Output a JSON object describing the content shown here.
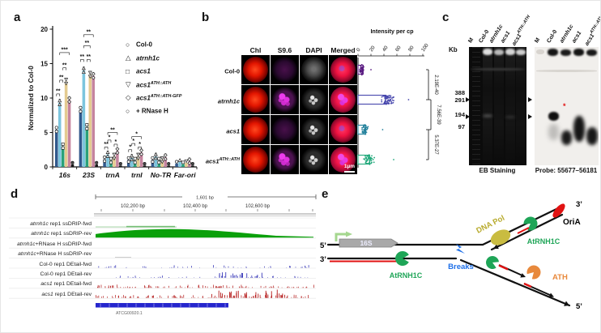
{
  "figure": {
    "panel_labels": {
      "a": "a",
      "b": "b",
      "c": "c",
      "d": "d",
      "e": "e"
    }
  },
  "chart_data": [
    {
      "id": "panel_a_qpcr",
      "type": "bar",
      "title": "",
      "xlabel": "",
      "ylabel": "Normalized to Col-0",
      "ylim": [
        0,
        20
      ],
      "yticks": [
        0,
        5,
        10,
        15,
        20
      ],
      "categories": [
        "16s",
        "23S",
        "trnA",
        "trnI",
        "No-TR",
        "Far-ori"
      ],
      "series": [
        {
          "name": "Col-0",
          "marker": "circle",
          "color": "#31598c",
          "values": [
            5.4,
            8.3,
            1.1,
            1.0,
            1.0,
            0.5
          ]
        },
        {
          "name": "atrnh1c",
          "marker": "triangle-up",
          "color": "#7cc5de",
          "values": [
            9.3,
            14.0,
            1.8,
            1.3,
            1.5,
            0.7
          ]
        },
        {
          "name": "acs1",
          "marker": "square",
          "color": "#2aa179",
          "values": [
            3.0,
            5.8,
            0.9,
            0.9,
            0.9,
            0.4
          ]
        },
        {
          "name": "acs1 ATH::ATH",
          "marker": "triangle-down",
          "color": "#e4cb90",
          "values": [
            12.4,
            13.4,
            1.5,
            1.5,
            1.0,
            0.6
          ]
        },
        {
          "name": "acs1 ATH::ATH-GFP",
          "marker": "diamond",
          "color": "#c5849e",
          "values": [
            9.7,
            13.2,
            2.3,
            2.1,
            1.4,
            0.8
          ]
        },
        {
          "name": "+ RNase H",
          "marker": "circle",
          "color": "#161616",
          "values": [
            0.35,
            0.35,
            0.2,
            0.2,
            0.2,
            0.2
          ]
        }
      ],
      "significance": [
        {
          "cat": 0,
          "a": 0,
          "b": 1,
          "y": 10.6,
          "label": "**"
        },
        {
          "cat": 0,
          "a": 1,
          "b": 2,
          "y": 12.6,
          "label": "**"
        },
        {
          "cat": 0,
          "a": 2,
          "b": 3,
          "y": 14.4,
          "label": "**"
        },
        {
          "cat": 0,
          "a": 1,
          "b": 4,
          "y": 16.6,
          "label": "***"
        },
        {
          "cat": 1,
          "a": 0,
          "b": 1,
          "y": 15.6,
          "label": "**"
        },
        {
          "cat": 1,
          "a": 2,
          "b": 3,
          "y": 15.6,
          "label": "**"
        },
        {
          "cat": 1,
          "a": 1,
          "b": 3,
          "y": 17.6,
          "label": "**"
        },
        {
          "cat": 1,
          "a": 1,
          "b": 4,
          "y": 19.2,
          "label": "**"
        },
        {
          "cat": 2,
          "a": 0,
          "b": 1,
          "y": 2.9,
          "label": "**"
        },
        {
          "cat": 2,
          "a": 1,
          "b": 2,
          "y": 3.9,
          "label": "*"
        },
        {
          "cat": 2,
          "a": 3,
          "b": 4,
          "y": 3.3,
          "label": "*"
        },
        {
          "cat": 2,
          "a": 1,
          "b": 4,
          "y": 5.0,
          "label": "**"
        },
        {
          "cat": 3,
          "a": 0,
          "b": 1,
          "y": 2.5,
          "label": "*"
        },
        {
          "cat": 3,
          "a": 1,
          "b": 2,
          "y": 3.4,
          "label": "*"
        },
        {
          "cat": 3,
          "a": 3,
          "b": 4,
          "y": 2.9,
          "label": "*"
        },
        {
          "cat": 3,
          "a": 1,
          "b": 4,
          "y": 4.4,
          "label": "*"
        }
      ]
    },
    {
      "id": "panel_b_intensity",
      "type": "bar+scatter",
      "title": "Intensity per cp",
      "xlim": [
        0,
        100
      ],
      "xticks": [
        0,
        20,
        40,
        60,
        80,
        100
      ],
      "rows": [
        {
          "name": "Col-0",
          "color": "#5a1c82",
          "bar": 8,
          "mean": 6,
          "spread": 4,
          "n": 40,
          "outlier": 20
        },
        {
          "name": "atrnh1c",
          "color": "#4747ad",
          "bar": 42,
          "mean": 45,
          "spread": 12,
          "n": 65,
          "outlier": 78
        },
        {
          "name": "acs1",
          "color": "#22809b",
          "bar": 12,
          "mean": 10,
          "spread": 6,
          "n": 50,
          "outlier": 38
        },
        {
          "name": "acs1 ATH::ATH",
          "color": "#23a97c",
          "bar": 18,
          "mean": 17,
          "spread": 9,
          "n": 55,
          "outlier": 55
        }
      ],
      "pvalues": [
        "2.19E-40",
        "7.56E-39",
        "5.37E-27"
      ]
    }
  ],
  "panel_a": {
    "legend": [
      {
        "glyph": "○",
        "base": "Col-0",
        "sup": ""
      },
      {
        "glyph": "△",
        "base": "atrnh1c",
        "sup": ""
      },
      {
        "glyph": "□",
        "base": "acs1",
        "sup": ""
      },
      {
        "glyph": "▽",
        "base": "acs1",
        "sup": "ATH::ATH"
      },
      {
        "glyph": "◇",
        "base": "acs1",
        "sup": "ATH::ATH-GFP"
      },
      {
        "glyph": "○",
        "base": "+ RNase H",
        "sup": ""
      }
    ]
  },
  "panel_b": {
    "columns": [
      "Chl",
      "S9.6",
      "DAPI",
      "Merged"
    ],
    "rows": [
      {
        "base": "Col-0",
        "sup": ""
      },
      {
        "base": "atrnh1c",
        "sup": ""
      },
      {
        "base": "acs1",
        "sup": ""
      },
      {
        "base": "acs1",
        "sup": "ATH::ATH"
      }
    ],
    "scale_bar": "1µm"
  },
  "panel_c": {
    "kb": "Kb",
    "ladder": [
      "388",
      "291",
      "194",
      "97"
    ],
    "lanes": [
      {
        "base": "M",
        "sup": ""
      },
      {
        "base": "Col-0",
        "sup": ""
      },
      {
        "base": "atrnh1c",
        "sup": ""
      },
      {
        "base": "acs1",
        "sup": ""
      },
      {
        "base": "acs1",
        "sup": "ATH::ATH"
      }
    ],
    "left_caption": "EB Staining",
    "right_caption": "Probe: 55677–56181",
    "asterisk": "*"
  },
  "panel_d": {
    "ruler": {
      "span": "1,601 bp",
      "ticks": [
        "102,200 bp",
        "102,400 bp",
        "102,600 bp"
      ]
    },
    "tracks": [
      {
        "italic": "atrnh1c",
        "rest": " rep1 ssDRIP-fwd",
        "profile": "thinline",
        "color": "#0aa00a"
      },
      {
        "italic": "atrnh1c",
        "rest": " rep1 ssDRIP-rev",
        "profile": "hump",
        "color": "#0aa00a"
      },
      {
        "italic": "atrnh1c",
        "rest": "+RNase H ssDRIP-fwd",
        "profile": "empty",
        "color": "#0aa00a"
      },
      {
        "italic": "atrnh1c",
        "rest": "+RNase H ssDRIP-rev",
        "profile": "trace",
        "color": "#0aa00a"
      },
      {
        "italic": "",
        "rest": "Col-0 rep1 DEtail-fwd",
        "profile": "sparse",
        "color": "#2121b0"
      },
      {
        "italic": "",
        "rest": "Col-0 rep1 DEtail-rev",
        "profile": "spikesRight",
        "color": "#2121b0"
      },
      {
        "italic": "acs1",
        "rest": " rep1 DEtail-fwd",
        "profile": "noisy",
        "color": "#b41919"
      },
      {
        "italic": "acs1",
        "rest": " rep1 DEtail-rev",
        "profile": "noisyRight",
        "color": "#b41919"
      }
    ],
    "gene": "ATCG00920.1"
  },
  "panel_e": {
    "five_left": "5’",
    "three_left": "3’",
    "three_right": "3’",
    "five_right": "5’",
    "gene": "16S",
    "pol": "DNA Pol",
    "oria": "OriA",
    "rnh_left": "AtRNH1C",
    "rnh_right": "AtRNH1C",
    "breaks": "Breaks",
    "ath": "ATH"
  }
}
